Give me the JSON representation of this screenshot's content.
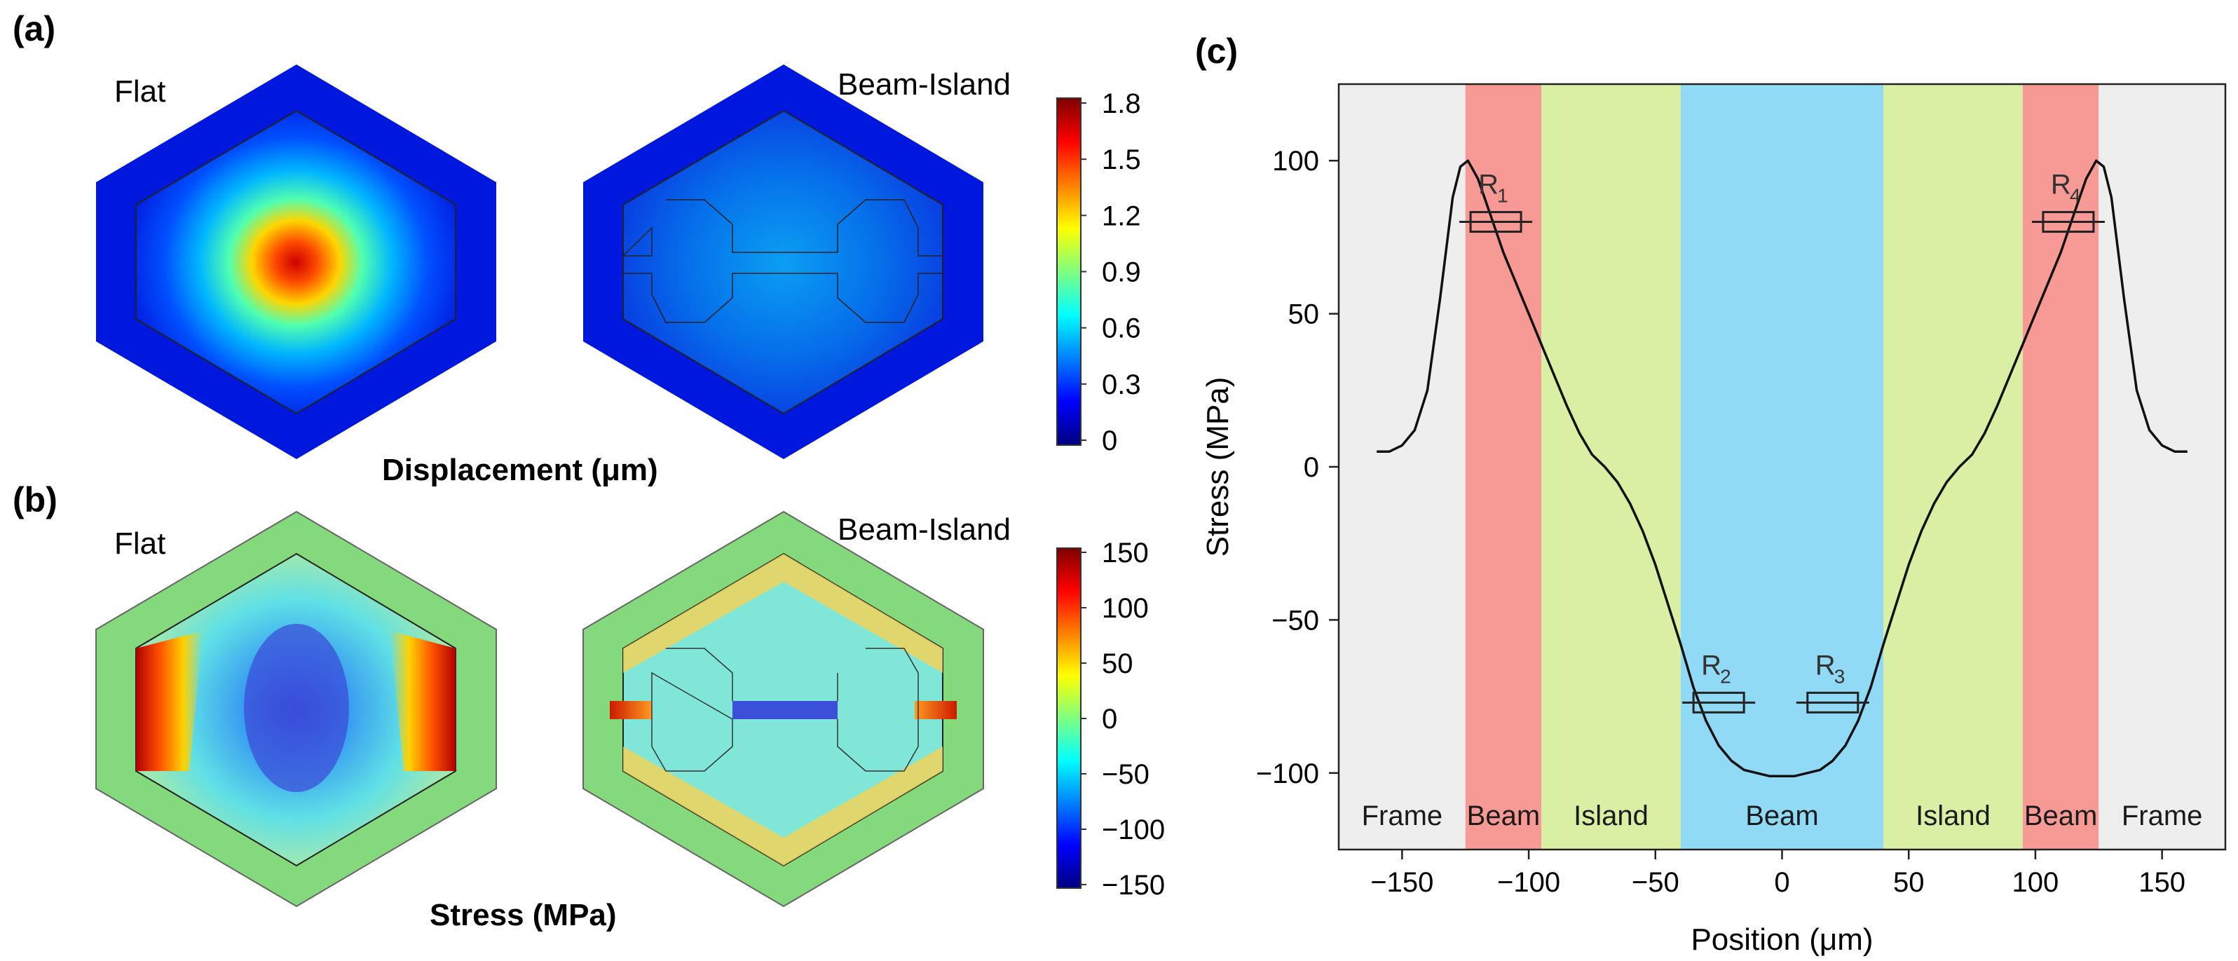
{
  "panels": {
    "a": {
      "label": "(a)",
      "left_title": "Flat",
      "right_title": "Beam-Island",
      "caption": "Displacement (μm)",
      "colorbar_ticks": [
        "1.8",
        "1.5",
        "1.2",
        "0.9",
        "0.6",
        "0.3",
        "0"
      ]
    },
    "b": {
      "label": "(b)",
      "left_title": "Flat",
      "right_title": "Beam-Island",
      "caption": "Stress (MPa)",
      "colorbar_ticks": [
        "150",
        "100",
        "50",
        "0",
        "−50",
        "−100",
        "−150"
      ]
    },
    "c": {
      "label": "(c)"
    }
  },
  "colors": {
    "frame": "#eeeeee",
    "beam_outer": "#f79a96",
    "island": "#d8efa4",
    "beam_center": "#91daf6",
    "jet_low": "#00007f",
    "jet_high": "#7f0000",
    "stress_zero": "#84d97c"
  },
  "chart_data": {
    "type": "line",
    "xlabel": "Position (μm)",
    "ylabel": "Stress (MPa)",
    "xlim": [
      -175,
      175
    ],
    "ylim": [
      -125,
      125
    ],
    "xticks": [
      -150,
      -100,
      -50,
      0,
      50,
      100,
      150
    ],
    "yticks": [
      -100,
      -50,
      0,
      50,
      100
    ],
    "grid": false,
    "regions": [
      {
        "label": "Frame",
        "x0": -175,
        "x1": -125,
        "color": "#eeeeee"
      },
      {
        "label": "Beam",
        "x0": -125,
        "x1": -95,
        "color": "#f79a96"
      },
      {
        "label": "Island",
        "x0": -95,
        "x1": -40,
        "color": "#d8efa4"
      },
      {
        "label": "Beam",
        "x0": -40,
        "x1": 40,
        "color": "#91daf6"
      },
      {
        "label": "Island",
        "x0": 40,
        "x1": 95,
        "color": "#d8efa4"
      },
      {
        "label": "Beam",
        "x0": 95,
        "x1": 125,
        "color": "#f79a96"
      },
      {
        "label": "Frame",
        "x0": 125,
        "x1": 175,
        "color": "#eeeeee"
      }
    ],
    "series": [
      {
        "x": [
          -160,
          -155,
          -150,
          -145,
          -140,
          -135,
          -130,
          -127,
          -124,
          -120,
          -115,
          -110,
          -105,
          -100,
          -95,
          -90,
          -85,
          -80,
          -75,
          -70,
          -65,
          -60,
          -55,
          -50,
          -45,
          -40,
          -35,
          -30,
          -25,
          -20,
          -15,
          -10,
          -5,
          0,
          5,
          10,
          15,
          20,
          25,
          30,
          35,
          40,
          45,
          50,
          55,
          60,
          65,
          70,
          75,
          80,
          85,
          90,
          95,
          100,
          105,
          110,
          115,
          120,
          124,
          127,
          130,
          135,
          140,
          145,
          150,
          155,
          160
        ],
        "y": [
          5,
          5,
          7,
          12,
          25,
          55,
          88,
          98,
          100,
          94,
          82,
          70,
          60,
          50,
          40,
          30,
          20,
          11,
          4,
          0,
          -5,
          -12,
          -21,
          -32,
          -45,
          -58,
          -72,
          -83,
          -91,
          -96,
          -99,
          -100,
          -101,
          -101,
          -101,
          -100,
          -99,
          -96,
          -91,
          -83,
          -72,
          -58,
          -45,
          -32,
          -21,
          -12,
          -5,
          0,
          4,
          11,
          20,
          30,
          40,
          50,
          60,
          70,
          82,
          94,
          100,
          98,
          88,
          55,
          25,
          12,
          7,
          5,
          5
        ]
      }
    ],
    "resistors": [
      {
        "label": "R",
        "sub": "1",
        "x": -113,
        "y": 80
      },
      {
        "label": "R",
        "sub": "2",
        "x": -25,
        "y": -77
      },
      {
        "label": "R",
        "sub": "3",
        "x": 20,
        "y": -77
      },
      {
        "label": "R",
        "sub": "4",
        "x": 113,
        "y": 80
      }
    ]
  }
}
